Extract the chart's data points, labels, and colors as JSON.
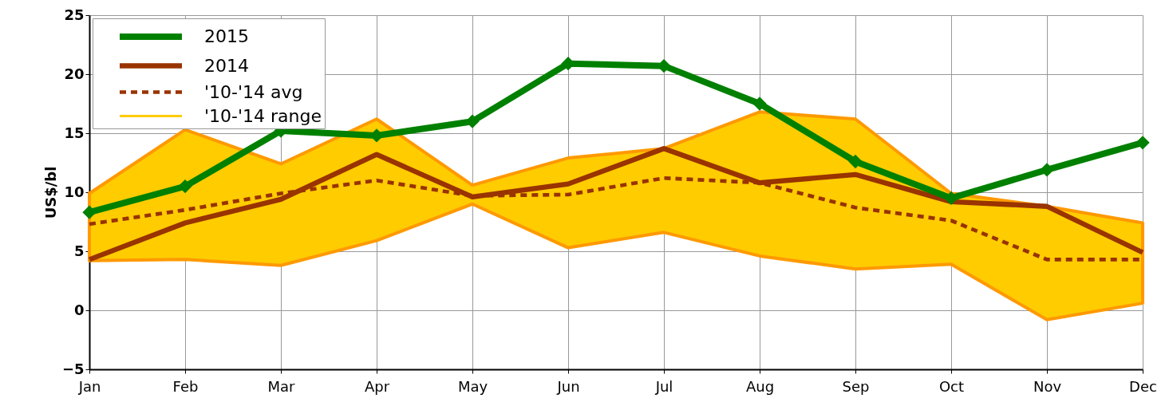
{
  "chart_data": {
    "type": "line",
    "ylabel": "US$/bl",
    "categories": [
      "Jan",
      "Feb",
      "Mar",
      "Apr",
      "May",
      "Jun",
      "Jul",
      "Aug",
      "Sep",
      "Oct",
      "Nov",
      "Dec"
    ],
    "series": [
      {
        "name": "'10-'14 avg",
        "color": "#993300",
        "line_style": "dashed",
        "marker": "none",
        "values": [
          7.3,
          8.5,
          9.9,
          11.0,
          9.7,
          9.8,
          11.2,
          10.8,
          8.7,
          7.6,
          4.3,
          4.3
        ],
        "lower": [
          4.2,
          4.3,
          3.8,
          5.9,
          9.0,
          5.3,
          6.6,
          4.6,
          3.5,
          3.9,
          -0.8,
          0.6
        ],
        "upper": [
          9.9,
          15.3,
          12.4,
          16.2,
          10.6,
          12.9,
          13.7,
          16.8,
          16.2,
          9.9,
          8.8,
          7.4
        ]
      },
      {
        "name": "2014",
        "color": "#993300",
        "line_style": "solid",
        "marker": "none",
        "values": [
          4.3,
          7.4,
          9.4,
          13.2,
          9.6,
          10.7,
          13.7,
          10.8,
          11.5,
          9.2,
          8.8,
          4.9
        ]
      },
      {
        "name": "2015",
        "color": "#008000",
        "line_style": "solid",
        "marker": "diamond",
        "values": [
          8.3,
          10.5,
          15.2,
          14.8,
          16.0,
          20.9,
          20.7,
          17.5,
          12.6,
          9.5,
          11.9,
          14.2
        ]
      }
    ],
    "annotations": [
      "'10-'14 range"
    ],
    "ylim": [
      -5,
      25
    ],
    "yticks": [
      -5,
      0,
      5,
      10,
      15,
      20,
      25
    ],
    "grid": true,
    "legend": "top left"
  }
}
